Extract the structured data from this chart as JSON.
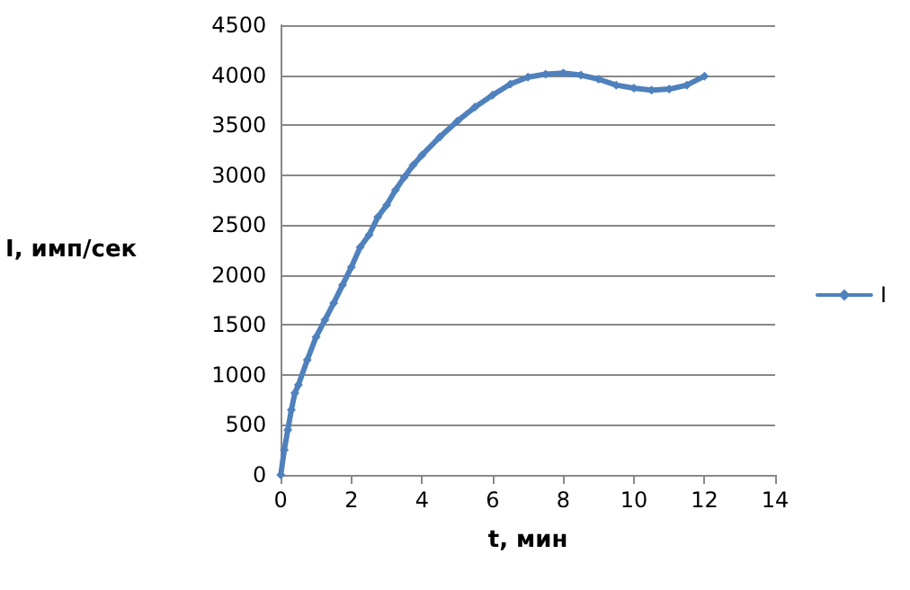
{
  "chart_data": {
    "type": "line",
    "xlabel": "t, мин",
    "ylabel": "I, имп/сек",
    "x": [
      0,
      0.1,
      0.2,
      0.3,
      0.4,
      0.5,
      0.75,
      1,
      1.25,
      1.5,
      1.75,
      2,
      2.25,
      2.5,
      2.75,
      3,
      3.25,
      3.5,
      3.75,
      4,
      4.5,
      5,
      5.5,
      6,
      6.5,
      7,
      7.5,
      8,
      8.5,
      9,
      9.5,
      10,
      10.5,
      11,
      11.5,
      12
    ],
    "series": [
      {
        "name": "I",
        "color": "#4f81bd",
        "values": [
          0,
          250,
          450,
          650,
          820,
          900,
          1150,
          1380,
          1550,
          1720,
          1900,
          2080,
          2280,
          2400,
          2580,
          2700,
          2850,
          2980,
          3100,
          3200,
          3380,
          3540,
          3680,
          3800,
          3910,
          3980,
          4010,
          4020,
          4000,
          3960,
          3900,
          3870,
          3850,
          3860,
          3900,
          3990
        ]
      }
    ],
    "xlim": [
      0,
      14
    ],
    "xticks": [
      0,
      2,
      4,
      6,
      8,
      10,
      12,
      14
    ],
    "ylim": [
      0,
      4500
    ],
    "yticks": [
      0,
      500,
      1000,
      1500,
      2000,
      2500,
      3000,
      3500,
      4000,
      4500
    ],
    "grid": "y",
    "legend": "right",
    "marker": "diamond",
    "line_style": "solid"
  }
}
